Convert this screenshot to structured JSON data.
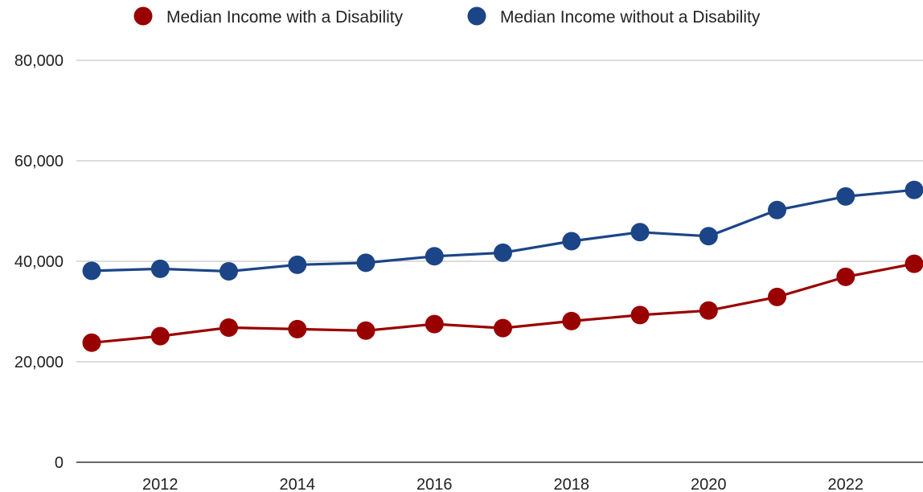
{
  "chart_data": {
    "type": "line",
    "title": "",
    "xlabel": "",
    "ylabel": "",
    "x": [
      2011,
      2012,
      2013,
      2014,
      2015,
      2016,
      2017,
      2018,
      2019,
      2020,
      2021,
      2022,
      2023
    ],
    "x_ticks": [
      "2012",
      "2014",
      "2016",
      "2018",
      "2020",
      "2022"
    ],
    "y_ticks": [
      "0",
      "20,000",
      "40,000",
      "60,000",
      "80,000"
    ],
    "ylim": [
      0,
      80000
    ],
    "grid": true,
    "legend_position": "top",
    "series": [
      {
        "name": "Median Income with a Disability",
        "color": "#990000",
        "values": [
          23800,
          25100,
          26800,
          26500,
          26200,
          27500,
          26700,
          28100,
          29300,
          30200,
          32900,
          36900,
          39500
        ]
      },
      {
        "name": "Median Income without a Disability",
        "color": "#1c4587",
        "values": [
          38100,
          38500,
          38000,
          39300,
          39700,
          41000,
          41700,
          44000,
          45800,
          45000,
          50200,
          52900,
          54200
        ]
      }
    ]
  }
}
